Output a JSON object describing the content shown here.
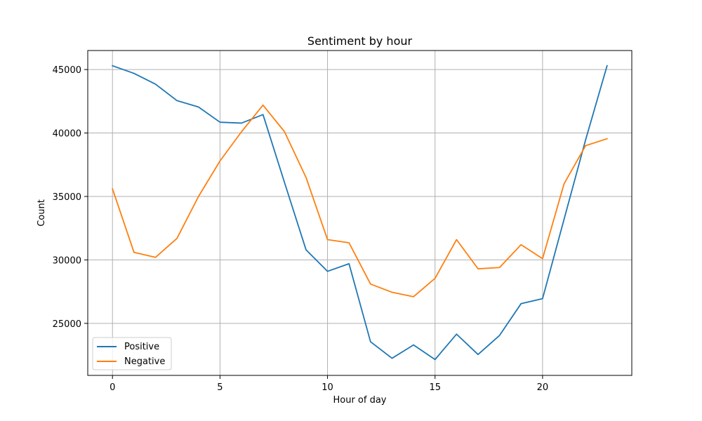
{
  "chart_data": {
    "type": "line",
    "title": "Sentiment by hour",
    "xlabel": "Hour of day",
    "ylabel": "Count",
    "xlim": [
      -1.15,
      24.15
    ],
    "ylim": [
      20900,
      46500
    ],
    "xticks": [
      0,
      5,
      10,
      15,
      20
    ],
    "yticks": [
      25000,
      30000,
      35000,
      40000,
      45000
    ],
    "grid": true,
    "legend_position": "lower-left",
    "x": [
      0,
      1,
      2,
      3,
      4,
      5,
      6,
      7,
      8,
      9,
      10,
      11,
      12,
      13,
      14,
      15,
      16,
      17,
      18,
      19,
      20,
      21,
      22,
      23
    ],
    "series": [
      {
        "name": "Positive",
        "color": "#1f77b4",
        "values": [
          45300,
          44700,
          43850,
          42550,
          42050,
          40850,
          40780,
          41450,
          36100,
          30800,
          29100,
          29700,
          23550,
          22250,
          23300,
          22150,
          24150,
          22550,
          24050,
          26550,
          26950,
          33200,
          39450,
          45300
        ]
      },
      {
        "name": "Negative",
        "color": "#ff7f0e",
        "values": [
          35600,
          30600,
          30200,
          31700,
          35000,
          37800,
          40100,
          42200,
          40100,
          36500,
          31600,
          31350,
          28100,
          27450,
          27100,
          28550,
          31600,
          29300,
          29400,
          31200,
          30100,
          36000,
          39000,
          39550
        ]
      }
    ]
  }
}
